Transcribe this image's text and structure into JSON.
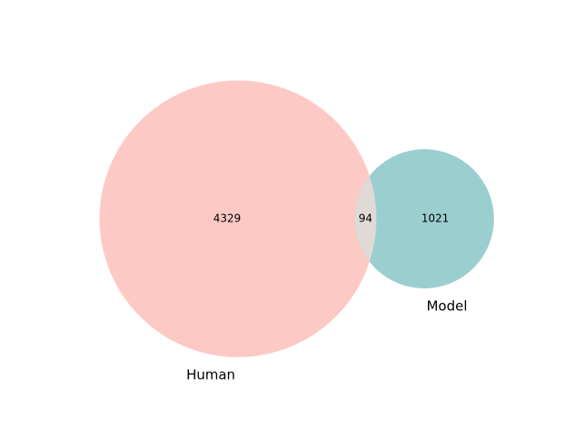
{
  "chart_data": {
    "type": "venn",
    "sets": [
      {
        "name": "Human",
        "only_count": "4329",
        "color": "#fdc9c5"
      },
      {
        "name": "Model",
        "only_count": "1021",
        "color": "#9bcecf"
      }
    ],
    "intersection": {
      "count": "94",
      "color": "#e0dad6"
    }
  }
}
